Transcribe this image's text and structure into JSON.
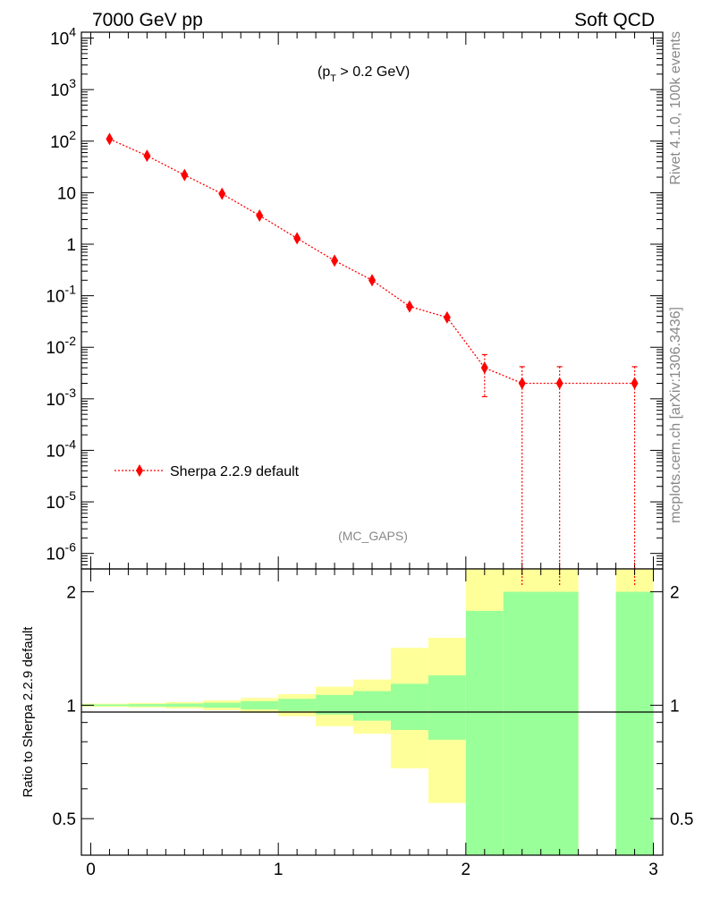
{
  "header": {
    "left": "7000 GeV pp",
    "right": "Soft QCD"
  },
  "side_labels": {
    "top": "Rivet 4.1.0,  100k events",
    "bottom": "mcplots.cern.ch [arXiv:1306.3436]"
  },
  "annotation": {
    "cut_prefix": "(p",
    "cut_sub": "T",
    "cut_suffix": " > 0.2 GeV)",
    "analysis": "(MC_GAPS)"
  },
  "legend": {
    "entry": "Sherpa 2.2.9 default"
  },
  "colors": {
    "series": "#ff0000",
    "band_inner": "#99ff99",
    "band_outer": "#ffff99"
  },
  "chart_data": [
    {
      "type": "scatter",
      "name": "main",
      "y_scale": "log",
      "xlim": [
        -0.05,
        3.05
      ],
      "ylim": [
        5e-07,
        13000.0
      ],
      "y_tick_labels": [
        "10^-6",
        "10^-5",
        "10^-4",
        "10^-3",
        "10^-2",
        "10^-1",
        "1",
        "10",
        "10^2",
        "10^3",
        "10^4"
      ],
      "series": [
        {
          "name": "Sherpa 2.2.9 default",
          "x": [
            0.1,
            0.3,
            0.5,
            0.7,
            0.9,
            1.1,
            1.3,
            1.5,
            1.7,
            1.9,
            2.1,
            2.3,
            2.5,
            2.9
          ],
          "y": [
            110,
            52,
            22,
            9.5,
            3.6,
            1.3,
            0.48,
            0.2,
            0.062,
            0.038,
            0.004,
            0.002,
            0.002,
            0.002
          ],
          "y_low": [
            110,
            52,
            22,
            9.5,
            3.6,
            1.3,
            0.48,
            0.2,
            0.062,
            0.038,
            0.0011,
            0,
            0,
            0
          ],
          "y_high": [
            110,
            52,
            22,
            9.5,
            3.6,
            1.3,
            0.48,
            0.2,
            0.062,
            0.038,
            0.0072,
            0.0042,
            0.0042,
            0.0042
          ]
        }
      ]
    },
    {
      "type": "area",
      "name": "ratio",
      "ylabel": "Ratio to Sherpa 2.2.9 default",
      "xlim": [
        -0.05,
        3.05
      ],
      "ylim": [
        0.4,
        2.3
      ],
      "x_ticks": [
        0,
        1,
        2,
        3
      ],
      "y_ticks": [
        0.5,
        1,
        2
      ],
      "reference_line": 1,
      "bins": [
        {
          "x0": -0.05,
          "x1": 0.2,
          "inner": [
            0.995,
            1.005
          ],
          "outer": [
            0.99,
            1.01
          ]
        },
        {
          "x0": 0.2,
          "x1": 0.4,
          "inner": [
            0.993,
            1.007
          ],
          "outer": [
            0.986,
            1.014
          ]
        },
        {
          "x0": 0.4,
          "x1": 0.6,
          "inner": [
            0.99,
            1.01
          ],
          "outer": [
            0.98,
            1.02
          ]
        },
        {
          "x0": 0.6,
          "x1": 0.8,
          "inner": [
            0.985,
            1.015
          ],
          "outer": [
            0.97,
            1.03
          ]
        },
        {
          "x0": 0.8,
          "x1": 1.0,
          "inner": [
            0.975,
            1.025
          ],
          "outer": [
            0.955,
            1.045
          ]
        },
        {
          "x0": 1.0,
          "x1": 1.2,
          "inner": [
            0.965,
            1.04
          ],
          "outer": [
            0.935,
            1.07
          ]
        },
        {
          "x0": 1.2,
          "x1": 1.4,
          "inner": [
            0.945,
            1.065
          ],
          "outer": [
            0.88,
            1.12
          ]
        },
        {
          "x0": 1.4,
          "x1": 1.6,
          "inner": [
            0.91,
            1.09
          ],
          "outer": [
            0.84,
            1.17
          ]
        },
        {
          "x0": 1.6,
          "x1": 1.8,
          "inner": [
            0.86,
            1.14
          ],
          "outer": [
            0.68,
            1.42
          ]
        },
        {
          "x0": 1.8,
          "x1": 2.0,
          "inner": [
            0.81,
            1.2
          ],
          "outer": [
            0.55,
            1.51
          ]
        },
        {
          "x0": 2.0,
          "x1": 2.2,
          "inner": [
            0.35,
            1.78
          ],
          "outer": [
            0.35,
            2.4
          ]
        },
        {
          "x0": 2.2,
          "x1": 2.6,
          "inner": [
            0.35,
            2.0
          ],
          "outer": [
            0.35,
            2.4
          ]
        },
        {
          "x0": 2.8,
          "x1": 3.0,
          "inner": [
            0.35,
            2.0
          ],
          "outer": [
            0.35,
            2.4
          ]
        }
      ]
    }
  ]
}
